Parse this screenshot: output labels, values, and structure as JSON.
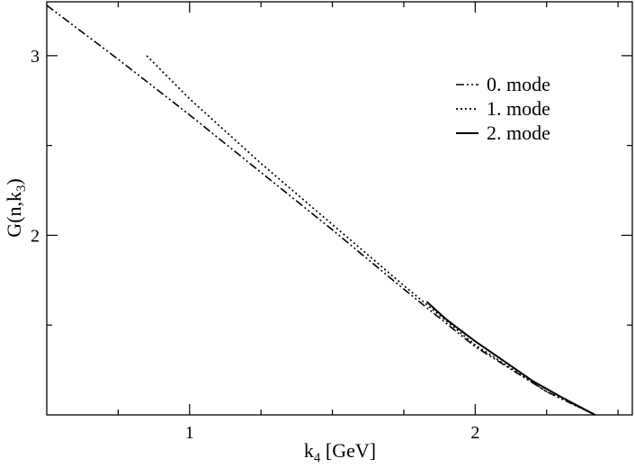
{
  "chart_data": {
    "type": "line",
    "xlabel": {
      "main": "k",
      "sub": "4",
      "rest": " [GeV]"
    },
    "ylabel": {
      "main": "G(n,k",
      "sub": "3",
      "rest": ")"
    },
    "xlim": [
      0.5,
      2.55
    ],
    "ylim": [
      1.0,
      3.3
    ],
    "x_ticks": [
      {
        "value": 1,
        "label": "1"
      },
      {
        "value": 2,
        "label": "2"
      }
    ],
    "x_minor_ticks": [
      0.75,
      1.25,
      1.5,
      1.75,
      2.25,
      2.5
    ],
    "y_ticks": [
      {
        "value": 2,
        "label": "2"
      },
      {
        "value": 3,
        "label": "3"
      }
    ],
    "y_minor_ticks": [
      1.5,
      2.5
    ],
    "grid": false,
    "legend_position": "top-right",
    "series": [
      {
        "name": "0. mode",
        "style": "dash-dot-dot",
        "x": [
          0.5,
          0.75,
          1.0,
          1.25,
          1.5,
          1.75,
          2.0,
          2.25,
          2.42
        ],
        "y": [
          3.28,
          2.98,
          2.67,
          2.35,
          2.03,
          1.7,
          1.38,
          1.13,
          1.0
        ]
      },
      {
        "name": "1. mode",
        "style": "dotted",
        "x": [
          0.85,
          1.0,
          1.25,
          1.5,
          1.75,
          2.0,
          2.25,
          2.42
        ],
        "y": [
          3.0,
          2.76,
          2.4,
          2.06,
          1.72,
          1.39,
          1.13,
          1.0
        ]
      },
      {
        "name": "2. mode",
        "style": "solid",
        "x": [
          1.83,
          1.9,
          2.0,
          2.1,
          2.2,
          2.3,
          2.42
        ],
        "y": [
          1.63,
          1.53,
          1.41,
          1.3,
          1.19,
          1.1,
          1.0
        ]
      }
    ]
  }
}
